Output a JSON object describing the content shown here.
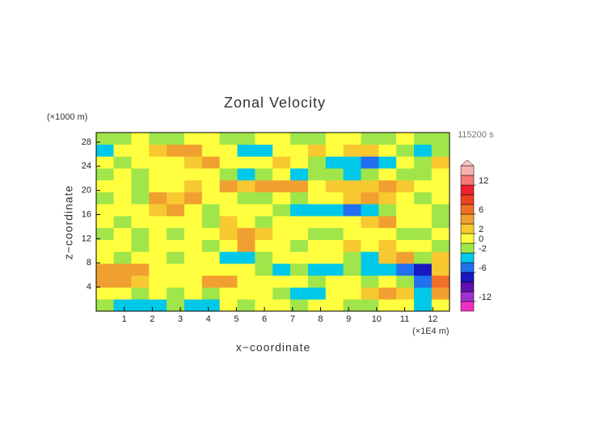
{
  "chart_data": {
    "type": "contour",
    "title": "Zonal Velocity",
    "xlabel": "x−coordinate",
    "ylabel": "z−coordinate",
    "x_unit": "(×1E4 m)",
    "y_unit": "(×1000 m)",
    "time_label": "115200 s",
    "xlim": [
      0,
      12.6
    ],
    "ylim": [
      0,
      29.6
    ],
    "xticks": [
      1,
      2,
      3,
      4,
      5,
      6,
      7,
      8,
      9,
      10,
      11,
      12
    ],
    "yticks": [
      4,
      8,
      12,
      16,
      20,
      24,
      28
    ],
    "z": [
      [
        -1,
        -3,
        -3,
        -3,
        -1,
        -3,
        -3,
        1,
        -1,
        1,
        1,
        -1,
        1,
        1,
        -1,
        -1,
        1,
        1,
        -3,
        1
      ],
      [
        1,
        1,
        -1,
        1,
        -1,
        1,
        -1,
        1,
        1,
        1,
        -1,
        -3,
        -3,
        1,
        1,
        3,
        5,
        3,
        -3,
        5
      ],
      [
        5,
        5,
        3,
        1,
        1,
        1,
        5,
        5,
        1,
        1,
        1,
        1,
        -1,
        1,
        1,
        -1,
        1,
        -1,
        -5,
        7
      ],
      [
        5,
        5,
        5,
        1,
        1,
        1,
        1,
        1,
        1,
        -1,
        -3,
        -1,
        -3,
        -3,
        -1,
        -3,
        -3,
        -5,
        -7,
        3
      ],
      [
        1,
        -1,
        1,
        1,
        -1,
        1,
        1,
        -3,
        -3,
        -1,
        1,
        1,
        1,
        1,
        -1,
        -3,
        3,
        5,
        -1,
        3
      ],
      [
        1,
        1,
        -1,
        1,
        1,
        1,
        -1,
        1,
        5,
        1,
        1,
        -1,
        1,
        1,
        3,
        1,
        3,
        1,
        1,
        -1
      ],
      [
        -1,
        1,
        -1,
        1,
        -1,
        1,
        1,
        3,
        5,
        3,
        1,
        1,
        -1,
        -1,
        1,
        1,
        1,
        -1,
        -1,
        1
      ],
      [
        1,
        -1,
        1,
        1,
        1,
        1,
        -1,
        3,
        1,
        -1,
        1,
        1,
        1,
        1,
        1,
        3,
        5,
        1,
        1,
        -1
      ],
      [
        1,
        1,
        1,
        3,
        5,
        1,
        -1,
        1,
        1,
        1,
        -1,
        -3,
        -3,
        -3,
        -5,
        -3,
        -1,
        1,
        1,
        -1
      ],
      [
        -1,
        1,
        -1,
        5,
        3,
        5,
        1,
        1,
        -1,
        -1,
        1,
        -1,
        1,
        1,
        3,
        5,
        3,
        1,
        -1,
        1
      ],
      [
        1,
        1,
        -1,
        1,
        1,
        3,
        1,
        5,
        3,
        5,
        5,
        5,
        1,
        3,
        3,
        3,
        5,
        3,
        1,
        1
      ],
      [
        -1,
        1,
        -1,
        1,
        1,
        1,
        1,
        -1,
        -3,
        -1,
        1,
        -3,
        -1,
        -1,
        -3,
        -1,
        1,
        -1,
        -1,
        1
      ],
      [
        1,
        -1,
        1,
        1,
        1,
        3,
        5,
        1,
        1,
        1,
        3,
        1,
        -1,
        -3,
        -3,
        -5,
        -3,
        1,
        -1,
        3
      ],
      [
        -3,
        1,
        1,
        3,
        5,
        5,
        1,
        1,
        -3,
        -3,
        1,
        1,
        3,
        1,
        3,
        3,
        1,
        -1,
        -3,
        -1
      ],
      [
        -1,
        -1,
        1,
        -1,
        -1,
        1,
        1,
        -1,
        -1,
        1,
        1,
        -1,
        -1,
        1,
        1,
        -1,
        -1,
        1,
        -1,
        -1
      ]
    ],
    "levels": [
      -14,
      -12,
      -10,
      -8,
      -6,
      -4,
      -2,
      0,
      2,
      4,
      6,
      8,
      10,
      12,
      14,
      16
    ],
    "colors": [
      "#f030c0",
      "#a030d0",
      "#6010b0",
      "#1818c0",
      "#2070f0",
      "#00c8e8",
      "#a0e64a",
      "#ffff40",
      "#f8c830",
      "#f0a030",
      "#f07028",
      "#f04020",
      "#f02030",
      "#f87878",
      "#f8b0b0"
    ],
    "over_color": "#ffc8c8",
    "colorbar_ticks": [
      12,
      6,
      2,
      0,
      -2,
      -6,
      -12
    ]
  }
}
